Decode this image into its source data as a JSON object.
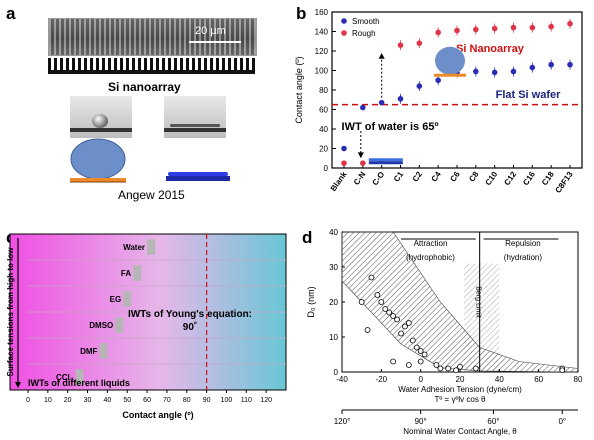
{
  "panels": {
    "a": {
      "label": "a",
      "scale_bar": "20 µm",
      "caption": "Si nanoarray",
      "citation": "Angew 2015"
    },
    "b": {
      "label": "b",
      "annotation_rough": "Si Nanoarray",
      "annotation_smooth": "Flat Si wafer",
      "iwt_text": "IWT of water is 65º"
    },
    "c": {
      "label": "c",
      "young_text_line1": "IWTs of Young's equation:",
      "young_text_line2": "90˚",
      "iwt_liquids_text": "IWTs of different liquids",
      "vertical_arrow_text": "Surface tensions from high to low"
    },
    "d": {
      "label": "d",
      "attraction_label": "Attraction",
      "attraction_sub": "(hydrophobic)",
      "repulsion_label": "Repulsion",
      "repulsion_sub": "(hydration)",
      "berg_limit": "Berg Limit",
      "equation": "Tº = γºlv cos θ",
      "xlabel2": "Nominal Water Contact Angle, θ"
    }
  },
  "chart_data": [
    {
      "id": "b",
      "type": "scatter",
      "xlabel": "",
      "ylabel": "Contact angle (º)",
      "ylim": [
        0,
        160
      ],
      "yticks": [
        0,
        20,
        40,
        60,
        80,
        100,
        120,
        140,
        160
      ],
      "categories": [
        "Blank",
        "C-N",
        "C-O",
        "C1",
        "C2",
        "C4",
        "C6",
        "C8",
        "C10",
        "C12",
        "C16",
        "C18",
        "C8F13"
      ],
      "legend": [
        "Smooth",
        "Rough"
      ],
      "legend_position": "top-left",
      "series": [
        {
          "name": "Smooth",
          "color": "#2b2bb5",
          "values": [
            20,
            62,
            67,
            71,
            84,
            90,
            98,
            99,
            98,
            99,
            103,
            106,
            106
          ]
        },
        {
          "name": "Rough",
          "color": "#e0344a",
          "values": [
            5,
            5,
            7,
            126,
            128,
            139,
            141,
            142,
            143,
            144,
            144,
            145,
            148
          ]
        }
      ],
      "reference_line": {
        "y": 65,
        "color": "#cc1111"
      }
    },
    {
      "id": "c",
      "type": "bar",
      "xlabel": "Contact angle (º)",
      "xlim": [
        0,
        130
      ],
      "xticks": [
        0,
        10,
        20,
        30,
        40,
        50,
        60,
        70,
        80,
        90,
        100,
        110,
        120
      ],
      "categories": [
        "Water",
        "FA",
        "EG",
        "DMSO",
        "DMF",
        "CCl₄"
      ],
      "values": [
        62,
        55,
        50,
        46,
        38,
        26
      ],
      "reference_line": {
        "x": 90,
        "color": "#cc1111"
      }
    },
    {
      "id": "d",
      "type": "scatter",
      "xlabel": "Water Adhesion Tension (dyne/cm)",
      "ylabel": "D₀ (nm)",
      "xlim": [
        -40,
        80
      ],
      "ylim": [
        0,
        40
      ],
      "xticks": [
        -40,
        -20,
        0,
        20,
        40,
        60,
        80
      ],
      "yticks": [
        0,
        10,
        20,
        30,
        40
      ],
      "secondary_xticks": [
        "120°",
        "90°",
        "60°",
        "0°"
      ],
      "berg_limit_x": 30,
      "points": [
        {
          "x": -25,
          "y": 27
        },
        {
          "x": -22,
          "y": 22
        },
        {
          "x": -20,
          "y": 20
        },
        {
          "x": -18,
          "y": 18
        },
        {
          "x": -16,
          "y": 17
        },
        {
          "x": -14,
          "y": 16
        },
        {
          "x": -12,
          "y": 15
        },
        {
          "x": -10,
          "y": 11
        },
        {
          "x": -8,
          "y": 13
        },
        {
          "x": -6,
          "y": 14
        },
        {
          "x": -4,
          "y": 9
        },
        {
          "x": -2,
          "y": 7
        },
        {
          "x": 0,
          "y": 6
        },
        {
          "x": 2,
          "y": 5
        },
        {
          "x": 0,
          "y": 3
        },
        {
          "x": 8,
          "y": 2
        },
        {
          "x": 10,
          "y": 1
        },
        {
          "x": 14,
          "y": 1
        },
        {
          "x": 18,
          "y": 0.5
        },
        {
          "x": 72,
          "y": 1
        },
        {
          "x": 72,
          "y": 0.5
        },
        {
          "x": -30,
          "y": 20
        },
        {
          "x": -27,
          "y": 12
        },
        {
          "x": -6,
          "y": 2
        },
        {
          "x": -14,
          "y": 3
        },
        {
          "x": 20,
          "y": 1.5
        },
        {
          "x": 28,
          "y": 1
        }
      ]
    }
  ]
}
